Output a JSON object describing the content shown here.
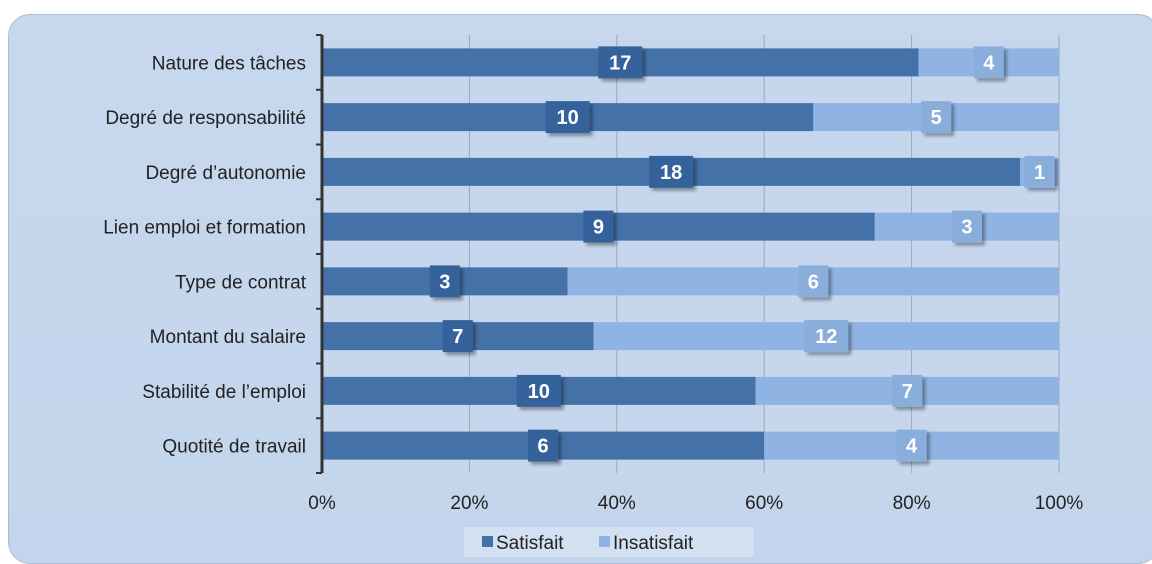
{
  "chart_data": {
    "type": "bar",
    "orientation": "horizontal",
    "stacked": true,
    "normalized": true,
    "categories": [
      "Nature des tâches",
      "Degré de responsabilité",
      "Degré d’autonomie",
      "Lien emploi et formation",
      "Type de contrat",
      "Montant du salaire",
      "Stabilité de l’emploi",
      "Quotité de travail"
    ],
    "series": [
      {
        "name": "Satisfait",
        "color": "#4471a7",
        "values": [
          17,
          10,
          18,
          9,
          3,
          7,
          10,
          6
        ]
      },
      {
        "name": "Insatisfait",
        "color": "#8fb3e2",
        "values": [
          4,
          5,
          1,
          3,
          6,
          12,
          7,
          4
        ]
      }
    ],
    "xticks": [
      "0%",
      "20%",
      "40%",
      "60%",
      "80%",
      "100%"
    ],
    "xlim": [
      0,
      100
    ],
    "grid": true,
    "legend": "bottom",
    "title": "",
    "xlabel": "",
    "ylabel": ""
  }
}
